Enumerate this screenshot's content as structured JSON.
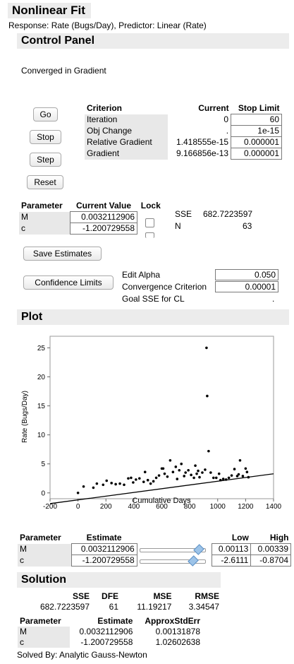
{
  "header": {
    "title": "Nonlinear Fit",
    "subtitle": "Response: Rate (Bugs/Day), Predictor: Linear (Rate)"
  },
  "control_panel": {
    "title": "Control Panel",
    "status": "Converged in Gradient",
    "buttons": {
      "go": "Go",
      "stop": "Stop",
      "step": "Step",
      "reset": "Reset"
    },
    "criterion_table": {
      "headers": [
        "Criterion",
        "Current",
        "Stop Limit"
      ],
      "rows": [
        {
          "name": "Iteration",
          "current": "0",
          "limit": "60"
        },
        {
          "name": "Obj Change",
          "current": ".",
          "limit": "1e-15"
        },
        {
          "name": "Relative Gradient",
          "current": "1.418555e-15",
          "limit": "0.000001"
        },
        {
          "name": "Gradient",
          "current": "9.166856e-13",
          "limit": "0.000001"
        }
      ]
    },
    "param_table": {
      "headers": [
        "Parameter",
        "Current Value",
        "Lock"
      ],
      "rows": [
        {
          "name": "M",
          "value": "0.0032112906"
        },
        {
          "name": "c",
          "value": "-1.200729558"
        }
      ]
    },
    "sse_label": "SSE",
    "sse_value": "682.7223597",
    "n_label": "N",
    "n_value": "63",
    "save_estimates": "Save Estimates",
    "confidence_limits": "Confidence Limits",
    "edit_alpha_label": "Edit Alpha",
    "edit_alpha_value": "0.050",
    "conv_criterion_label": "Convergence Criterion",
    "conv_criterion_value": "0.00001",
    "goal_sse_label": "Goal SSE for CL",
    "goal_sse_value": "."
  },
  "plot": {
    "title": "Plot",
    "chart_data": {
      "type": "scatter",
      "xlabel": "Cumulative Days",
      "ylabel": "Rate (Bugs/Day)",
      "xlim": [
        -200,
        1400
      ],
      "ylim": [
        -1,
        27
      ],
      "xticks": [
        "-200",
        "0",
        "200",
        "400",
        "600",
        "800",
        "1000",
        "1200",
        "1400"
      ],
      "yticks": [
        "0",
        "5",
        "10",
        "15",
        "20",
        "25"
      ],
      "points": [
        [
          0,
          0
        ],
        [
          40,
          1.1
        ],
        [
          110,
          0.9
        ],
        [
          135,
          1.6
        ],
        [
          180,
          1.4
        ],
        [
          205,
          2.1
        ],
        [
          240,
          1.7
        ],
        [
          270,
          1.5
        ],
        [
          300,
          1.6
        ],
        [
          330,
          1.4
        ],
        [
          360,
          2.5
        ],
        [
          380,
          2.6
        ],
        [
          395,
          1.8
        ],
        [
          415,
          2.3
        ],
        [
          440,
          2.5
        ],
        [
          470,
          1.9
        ],
        [
          480,
          3.6
        ],
        [
          500,
          2.2
        ],
        [
          520,
          1.6
        ],
        [
          540,
          2.0
        ],
        [
          560,
          2.6
        ],
        [
          580,
          3.0
        ],
        [
          600,
          4.2
        ],
        [
          610,
          4.2
        ],
        [
          620,
          3.3
        ],
        [
          640,
          2.8
        ],
        [
          660,
          5.6
        ],
        [
          680,
          3.6
        ],
        [
          700,
          4.5
        ],
        [
          710,
          2.4
        ],
        [
          725,
          3.9
        ],
        [
          740,
          5.0
        ],
        [
          760,
          2.9
        ],
        [
          770,
          3.5
        ],
        [
          790,
          3.9
        ],
        [
          810,
          3.1
        ],
        [
          830,
          2.6
        ],
        [
          840,
          4.7
        ],
        [
          850,
          3.3
        ],
        [
          860,
          3.8
        ],
        [
          870,
          2.7
        ],
        [
          890,
          3.5
        ],
        [
          910,
          4.0
        ],
        [
          920,
          25.0
        ],
        [
          925,
          16.7
        ],
        [
          935,
          7.2
        ],
        [
          950,
          3.5
        ],
        [
          970,
          2.6
        ],
        [
          990,
          2.6
        ],
        [
          1010,
          3.3
        ],
        [
          1020,
          2.2
        ],
        [
          1040,
          2.4
        ],
        [
          1060,
          2.3
        ],
        [
          1080,
          2.6
        ],
        [
          1100,
          3.0
        ],
        [
          1120,
          4.1
        ],
        [
          1140,
          2.9
        ],
        [
          1150,
          3.2
        ],
        [
          1160,
          5.6
        ],
        [
          1180,
          2.9
        ],
        [
          1200,
          4.2
        ],
        [
          1210,
          3.6
        ],
        [
          1220,
          2.7
        ]
      ],
      "fit_line": {
        "M": 0.0032112906,
        "c": -1.200729558
      }
    },
    "param_table": {
      "headers": [
        "Parameter",
        "Estimate",
        "Low",
        "High"
      ],
      "rows": [
        {
          "name": "M",
          "estimate": "0.0032112906",
          "low": "0.00113",
          "high": "0.00339",
          "slider_pos": 0.9
        },
        {
          "name": "c",
          "estimate": "-1.200729558",
          "low": "-2.6111",
          "high": "-0.8704",
          "slider_pos": 0.81
        }
      ]
    }
  },
  "solution": {
    "title": "Solution",
    "summary": {
      "headers": [
        "SSE",
        "DFE",
        "MSE",
        "RMSE"
      ],
      "values": [
        "682.7223597",
        "61",
        "11.19217",
        "3.34547"
      ]
    },
    "estimates": {
      "headers": [
        "Parameter",
        "Estimate",
        "ApproxStdErr"
      ],
      "rows": [
        {
          "name": "M",
          "estimate": "0.0032112906",
          "stderr": "0.00131878"
        },
        {
          "name": "c",
          "estimate": "-1.200729558",
          "stderr": "1.02602638"
        }
      ]
    },
    "solved_by": "Solved By: Analytic Gauss-Newton"
  },
  "colors": {
    "header_bg": "#ececec",
    "table_shade": "#e8e8e8",
    "slider_thumb": "#9cc3e8",
    "points": "#000000"
  }
}
